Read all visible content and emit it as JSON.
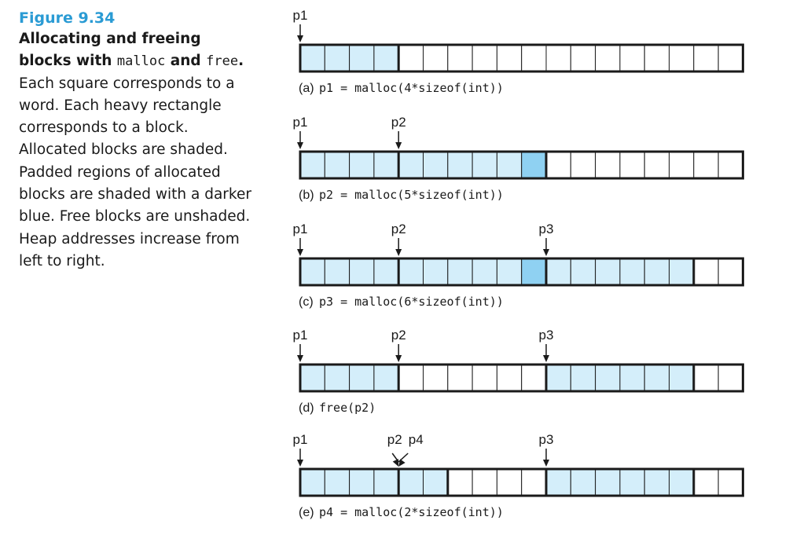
{
  "caption": {
    "figure_label": "Figure 9.34",
    "bold_part1": "Allocating and freeing blocks with ",
    "code1": "malloc",
    "bold_part2": " and ",
    "code2": "free",
    "bold_part3": ".",
    "body": " Each square corresponds to a word. Each heavy rectangle corresponds to a block. Allocated blocks are shaded. Padded regions of allocated blocks are shaded with a darker blue. Free blocks are unshaded. Heap addresses increase from left to right."
  },
  "colors": {
    "allocated": "#d4eefa",
    "padding": "#8fd1f2",
    "free": "#ffffff",
    "outline": "#1a1a1a",
    "accent": "#2a9bd4"
  },
  "diagram": {
    "words_per_heap": 18,
    "rows": [
      {
        "id": "a",
        "letter": "(a)",
        "code": "p1 = malloc(4*sizeof(int))",
        "cells": [
          "A",
          "A",
          "A",
          "A",
          "F",
          "F",
          "F",
          "F",
          "F",
          "F",
          "F",
          "F",
          "F",
          "F",
          "F",
          "F",
          "F",
          "F"
        ],
        "block_boundaries": [
          4
        ],
        "pointers": [
          {
            "label": "p1",
            "word": 0
          }
        ]
      },
      {
        "id": "b",
        "letter": "(b)",
        "code": "p2 = malloc(5*sizeof(int))",
        "cells": [
          "A",
          "A",
          "A",
          "A",
          "A",
          "A",
          "A",
          "A",
          "A",
          "P",
          "F",
          "F",
          "F",
          "F",
          "F",
          "F",
          "F",
          "F"
        ],
        "block_boundaries": [
          4,
          10
        ],
        "pointers": [
          {
            "label": "p1",
            "word": 0
          },
          {
            "label": "p2",
            "word": 4
          }
        ]
      },
      {
        "id": "c",
        "letter": "(c)",
        "code": "p3 = malloc(6*sizeof(int))",
        "cells": [
          "A",
          "A",
          "A",
          "A",
          "A",
          "A",
          "A",
          "A",
          "A",
          "P",
          "A",
          "A",
          "A",
          "A",
          "A",
          "A",
          "F",
          "F"
        ],
        "block_boundaries": [
          4,
          10,
          16
        ],
        "pointers": [
          {
            "label": "p1",
            "word": 0
          },
          {
            "label": "p2",
            "word": 4
          },
          {
            "label": "p3",
            "word": 10
          }
        ]
      },
      {
        "id": "d",
        "letter": "(d)",
        "code": "free(p2)",
        "cells": [
          "A",
          "A",
          "A",
          "A",
          "F",
          "F",
          "F",
          "F",
          "F",
          "F",
          "A",
          "A",
          "A",
          "A",
          "A",
          "A",
          "F",
          "F"
        ],
        "block_boundaries": [
          4,
          10,
          16
        ],
        "pointers": [
          {
            "label": "p1",
            "word": 0
          },
          {
            "label": "p2",
            "word": 4
          },
          {
            "label": "p3",
            "word": 10
          }
        ]
      },
      {
        "id": "e",
        "letter": "(e)",
        "code": "p4 = malloc(2*sizeof(int))",
        "cells": [
          "A",
          "A",
          "A",
          "A",
          "A",
          "A",
          "F",
          "F",
          "F",
          "F",
          "A",
          "A",
          "A",
          "A",
          "A",
          "A",
          "F",
          "F"
        ],
        "block_boundaries": [
          4,
          6,
          10,
          16
        ],
        "pointers": [
          {
            "label": "p1",
            "word": 0
          },
          {
            "label": "p2",
            "word": 4,
            "slant": "left"
          },
          {
            "label": "p4",
            "word": 4,
            "slant": "right"
          },
          {
            "label": "p3",
            "word": 10
          }
        ]
      }
    ]
  }
}
